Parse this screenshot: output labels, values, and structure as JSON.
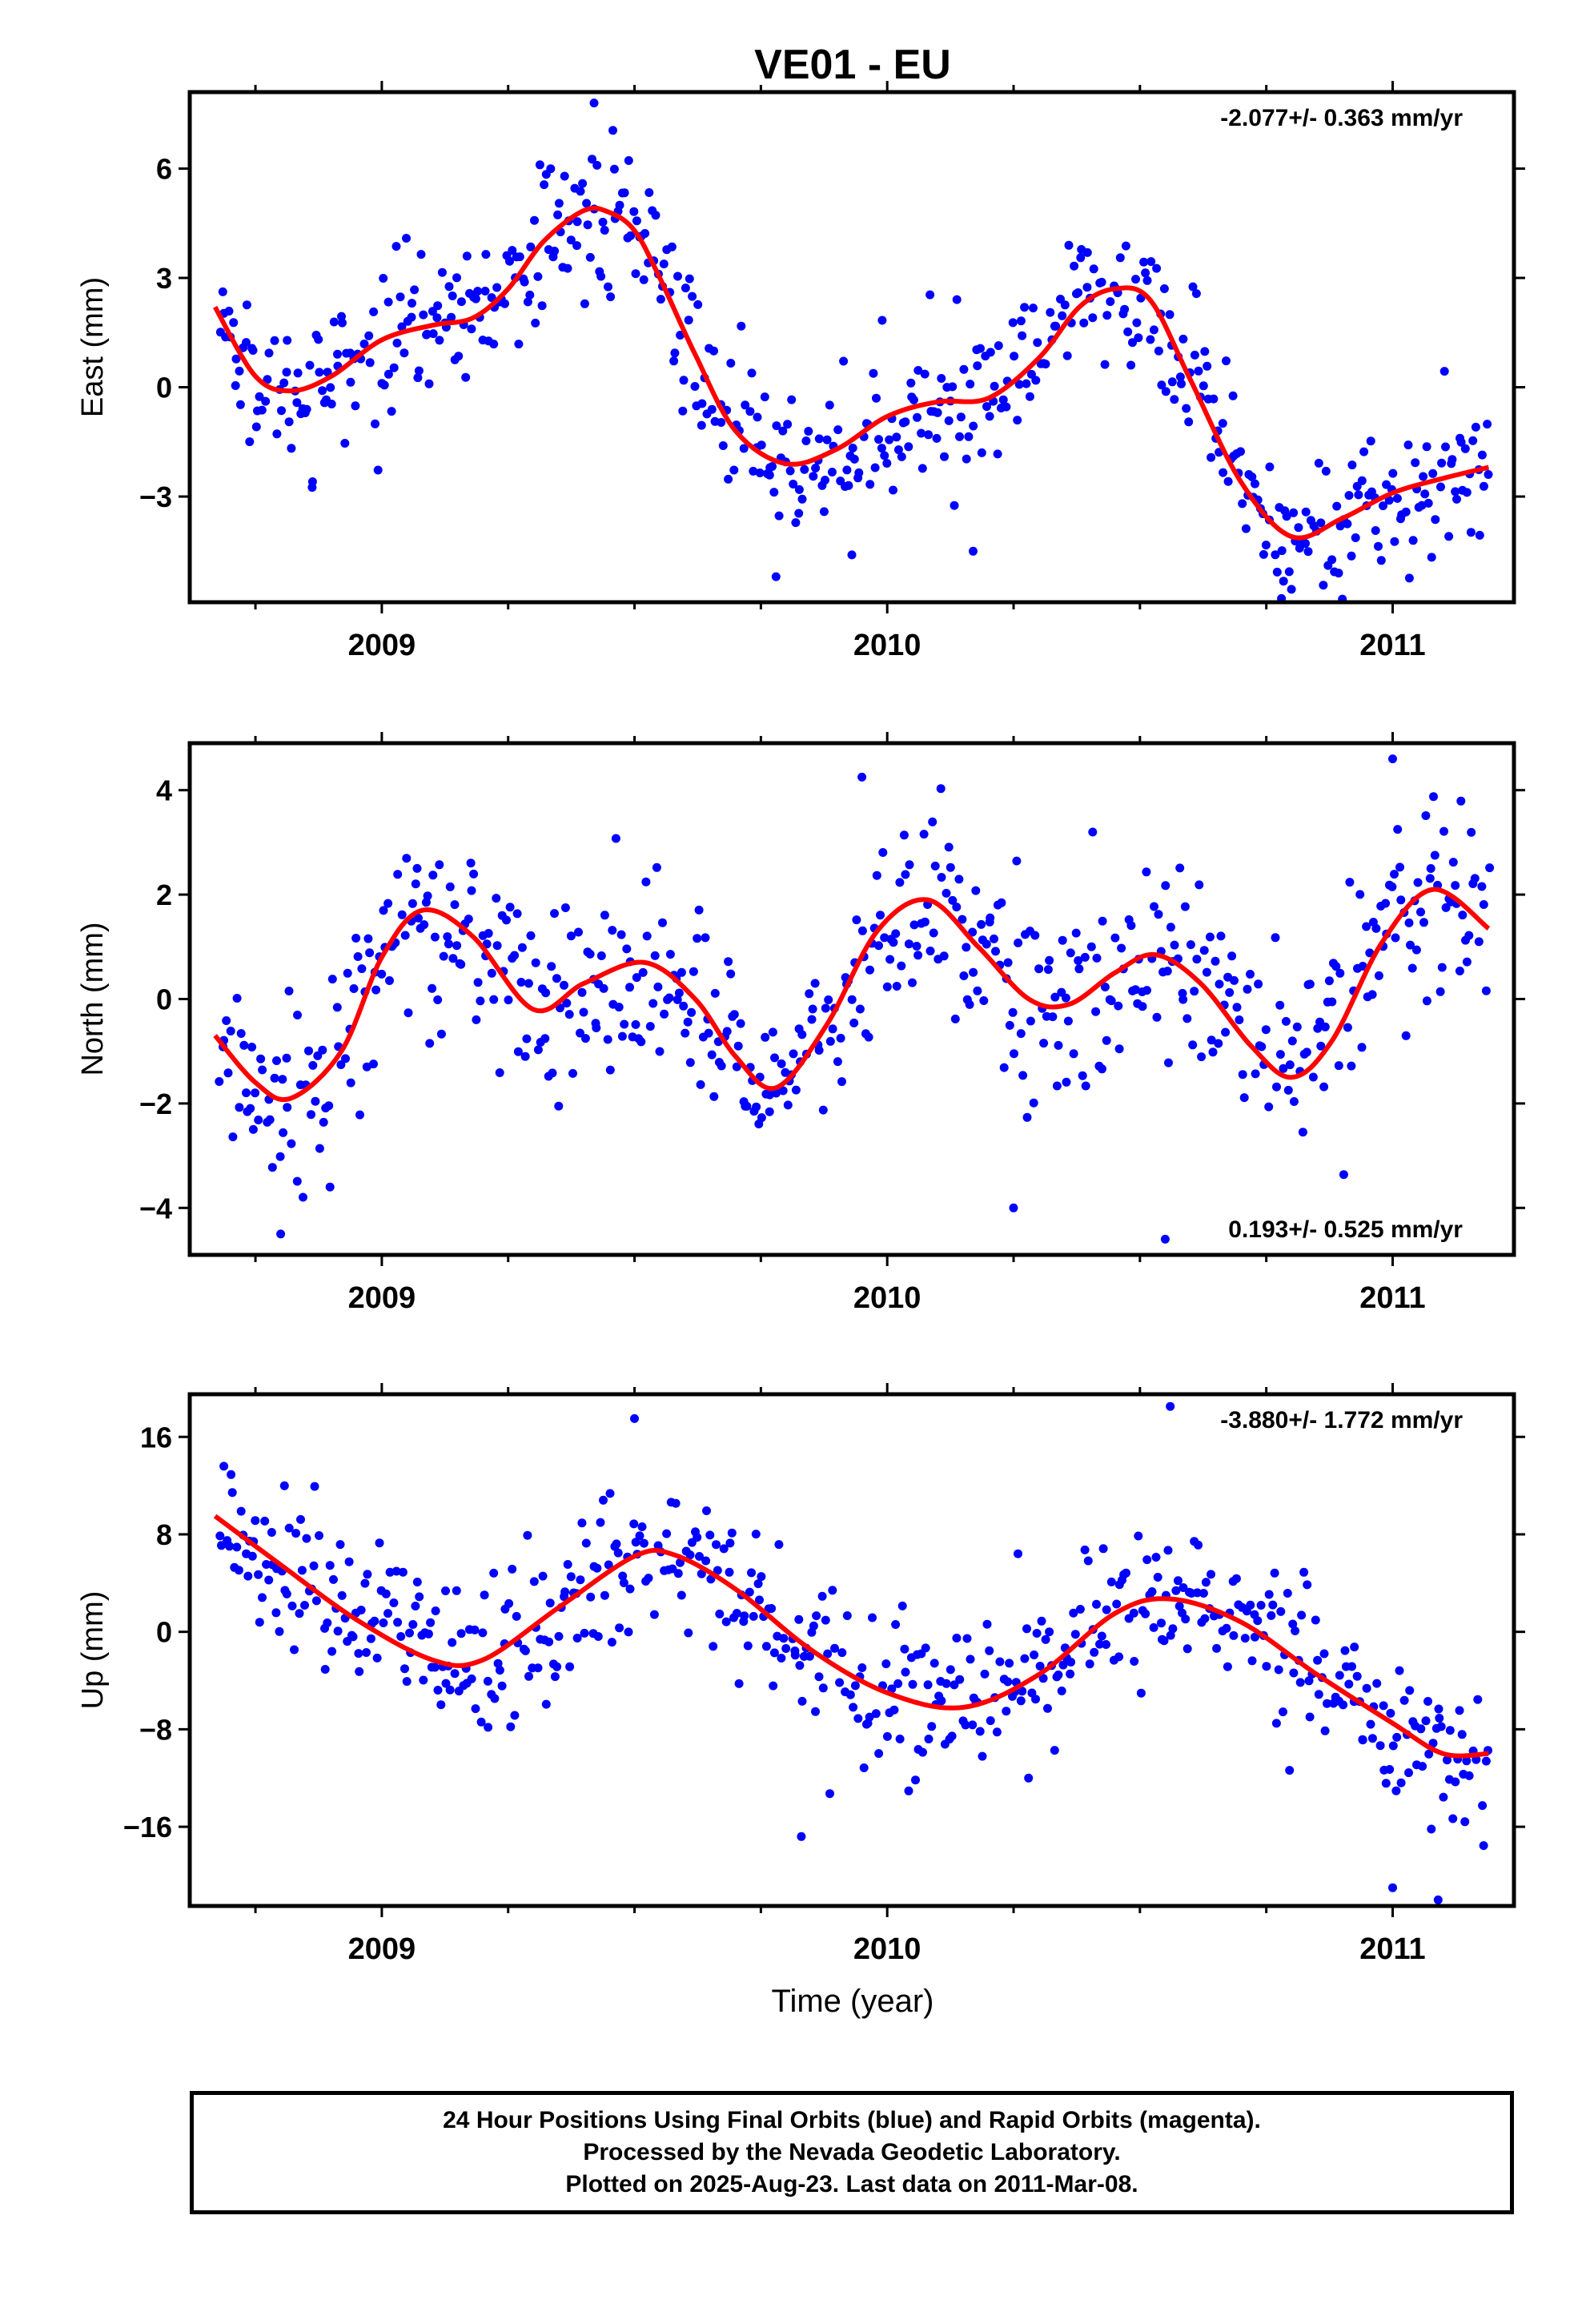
{
  "title": "VE01 - EU",
  "xlabel": "Time (year)",
  "colors": {
    "points": "#0000ff",
    "fit": "#ff0000",
    "frame": "#000000"
  },
  "chart_data": [
    {
      "type": "scatter",
      "name": "east",
      "ylabel": "East (mm)",
      "rate_label": "-2.077+/- 0.363 mm/yr",
      "rate_position": "top-right",
      "xlim": [
        2008.62,
        2011.24
      ],
      "ylim": [
        -5.9,
        8.1
      ],
      "yticks": [
        6,
        3,
        0,
        -3
      ],
      "ytick_labels": [
        "6",
        "3",
        "0",
        "−3"
      ],
      "xticks": [
        2009,
        2010,
        2011
      ],
      "xtick_labels": [
        "2009",
        "2010",
        "2011"
      ],
      "fit": {
        "x": [
          2008.67,
          2008.75,
          2008.82,
          2008.9,
          2009.0,
          2009.1,
          2009.18,
          2009.25,
          2009.32,
          2009.4,
          2009.45,
          2009.5,
          2009.55,
          2009.62,
          2009.7,
          2009.8,
          2009.9,
          2010.0,
          2010.1,
          2010.2,
          2010.3,
          2010.38,
          2010.45,
          2010.52,
          2010.6,
          2010.7,
          2010.8,
          2010.9,
          2011.0,
          2011.1,
          2011.19
        ],
        "y": [
          2.2,
          0.3,
          -0.1,
          0.3,
          1.3,
          1.7,
          1.9,
          2.7,
          4.0,
          4.85,
          4.8,
          4.3,
          3.0,
          0.9,
          -1.2,
          -2.1,
          -1.7,
          -0.8,
          -0.4,
          -0.3,
          0.8,
          2.2,
          2.7,
          2.4,
          0.2,
          -2.6,
          -4.1,
          -3.6,
          -2.9,
          -2.5,
          -2.2
        ]
      },
      "points": {
        "count": 600,
        "noise": 1.0,
        "outliers": [
          [
            2009.78,
            -5.2
          ],
          [
            2010.78,
            -5.8
          ],
          [
            2009.42,
            7.8
          ],
          [
            2010.17,
            -4.5
          ],
          [
            2009.93,
            -4.6
          ]
        ]
      }
    },
    {
      "type": "scatter",
      "name": "north",
      "ylabel": "North (mm)",
      "rate_label": "0.193+/- 0.525 mm/yr",
      "rate_position": "bottom-right",
      "xlim": [
        2008.62,
        2011.24
      ],
      "ylim": [
        -4.9,
        4.9
      ],
      "yticks": [
        4,
        2,
        0,
        -2,
        -4
      ],
      "ytick_labels": [
        "4",
        "2",
        "0",
        "−2",
        "−4"
      ],
      "xticks": [
        2009,
        2010,
        2011
      ],
      "xtick_labels": [
        "2009",
        "2010",
        "2011"
      ],
      "fit": {
        "x": [
          2008.67,
          2008.75,
          2008.82,
          2008.92,
          2009.0,
          2009.08,
          2009.18,
          2009.3,
          2009.4,
          2009.52,
          2009.62,
          2009.7,
          2009.78,
          2009.88,
          2009.98,
          2010.08,
          2010.18,
          2010.28,
          2010.36,
          2010.45,
          2010.53,
          2010.62,
          2010.72,
          2010.8,
          2010.88,
          2010.98,
          2011.08,
          2011.19
        ],
        "y": [
          -0.7,
          -1.6,
          -1.9,
          -1.0,
          0.8,
          1.7,
          1.2,
          -0.2,
          0.3,
          0.7,
          0.0,
          -1.1,
          -1.7,
          -0.5,
          1.3,
          1.9,
          1.0,
          0.0,
          -0.1,
          0.5,
          0.85,
          0.3,
          -0.9,
          -1.5,
          -0.8,
          1.1,
          2.1,
          1.35
        ]
      },
      "points": {
        "count": 600,
        "noise": 0.95,
        "outliers": [
          [
            2009.95,
            4.25
          ],
          [
            2010.55,
            -4.6
          ],
          [
            2010.25,
            -4.0
          ],
          [
            2008.8,
            -4.5
          ],
          [
            2011.0,
            4.6
          ]
        ]
      }
    },
    {
      "type": "scatter",
      "name": "up",
      "ylabel": "Up (mm)",
      "rate_label": "-3.880+/- 1.772 mm/yr",
      "rate_position": "top-right",
      "xlim": [
        2008.62,
        2011.24
      ],
      "ylim": [
        -22.5,
        19.5
      ],
      "yticks": [
        16,
        8,
        0,
        -8,
        -16
      ],
      "ytick_labels": [
        "16",
        "8",
        "0",
        "−8",
        "−16"
      ],
      "xticks": [
        2009,
        2010,
        2011
      ],
      "xtick_labels": [
        "2009",
        "2010",
        "2011"
      ],
      "fit": {
        "x": [
          2008.67,
          2008.8,
          2008.95,
          2009.1,
          2009.2,
          2009.35,
          2009.5,
          2009.58,
          2009.7,
          2009.85,
          2010.0,
          2010.15,
          2010.3,
          2010.45,
          2010.56,
          2010.7,
          2010.85,
          2011.0,
          2011.1,
          2011.19
        ],
        "y": [
          9.5,
          5.5,
          1.0,
          -2.3,
          -2.3,
          2.0,
          6.2,
          6.3,
          3.5,
          -1.5,
          -5.0,
          -6.2,
          -3.5,
          1.5,
          2.7,
          0.8,
          -3.5,
          -7.5,
          -10.0,
          -10.0
        ]
      },
      "points": {
        "count": 600,
        "noise": 3.3,
        "outliers": [
          [
            2009.83,
            -16.8
          ],
          [
            2010.56,
            18.5
          ],
          [
            2011.0,
            -21.0
          ],
          [
            2011.09,
            -22.0
          ],
          [
            2009.5,
            17.5
          ]
        ]
      }
    }
  ],
  "notes": [
    "24 Hour Positions Using Final Orbits (blue) and Rapid Orbits (magenta).",
    "Processed by the Nevada Geodetic Laboratory.",
    "Plotted on 2025-Aug-23. Last data on 2011-Mar-08."
  ]
}
